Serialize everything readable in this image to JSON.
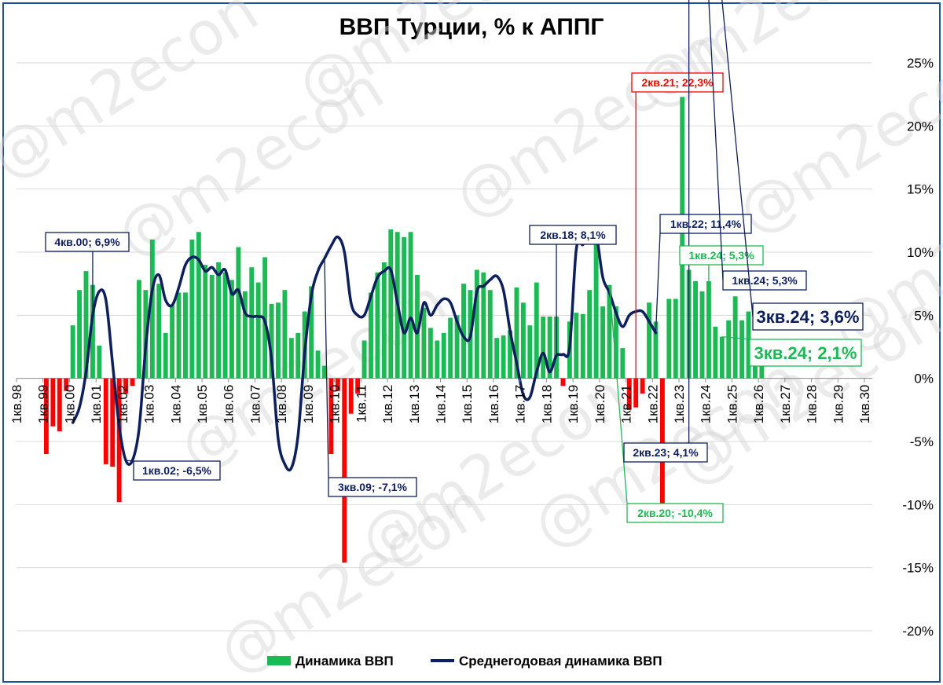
{
  "chart_data": {
    "type": "bar",
    "title": "ВВП Турции, % к АППГ",
    "watermark": "@m2econ",
    "y_axis": {
      "position": "right",
      "ylim": [
        -20,
        25
      ],
      "ticks": [
        25,
        20,
        15,
        10,
        5,
        0,
        -5,
        -10,
        -15,
        -20
      ],
      "tick_labels": [
        "25%",
        "20%",
        "15%",
        "10%",
        "5%",
        "0%",
        "-5%",
        "-10%",
        "-15%",
        "-20%"
      ],
      "grid": true
    },
    "x_axis": {
      "start": "1кв.98",
      "end": "1кв.30",
      "tick_labels": [
        "1кв.98",
        "1кв.99",
        "1кв.00",
        "1кв.01",
        "1кв.02",
        "1кв.03",
        "1кв.04",
        "1кв.05",
        "1кв.06",
        "1кв.07",
        "1кв.08",
        "1кв.09",
        "1кв.10",
        "1кв.11",
        "1кв.12",
        "1кв.13",
        "1кв.14",
        "1кв.15",
        "1кв.16",
        "1кв.17",
        "1кв.18",
        "1кв.19",
        "1кв.20",
        "1кв.21",
        "1кв.22",
        "1кв.23",
        "1кв.24",
        "1кв.25",
        "1кв.26",
        "1кв.27",
        "1кв.28",
        "1кв.29",
        "1кв.30"
      ]
    },
    "colors": {
      "positive_bar": "#1db954",
      "negative_bar": "#ff0000",
      "line": "#0d1f5c",
      "grid": "#d9d9d9"
    },
    "series": [
      {
        "name": "Динамика ВВП",
        "type": "bar",
        "start": "1кв.99",
        "values": [
          -6.0,
          -3.8,
          -4.2,
          -1.0,
          4.2,
          7.0,
          8.5,
          7.4,
          2.6,
          -6.8,
          -7.0,
          -9.8,
          -1.2,
          -0.6,
          7.8,
          7.0,
          11.0,
          7.5,
          3.6,
          5.8,
          6.8,
          6.8,
          11.0,
          11.6,
          9.0,
          8.2,
          9.2,
          8.4,
          7.8,
          10.4,
          6.9,
          8.8,
          7.6,
          9.6,
          5.9,
          6.0,
          7.0,
          3.2,
          3.6,
          5.3,
          7.3,
          2.2,
          1.0,
          -6.0,
          -1.0,
          -14.6,
          -2.8,
          -1.2,
          3.0,
          6.8,
          8.4,
          9.2,
          11.8,
          11.6,
          11.2,
          11.6,
          8.2,
          5.6,
          4.0,
          3.0,
          3.6,
          4.8,
          5.0,
          7.5,
          7.0,
          8.6,
          8.4,
          7.0,
          3.2,
          3.4,
          3.8,
          7.2,
          6.0,
          4.2,
          7.6,
          4.9,
          4.9,
          4.9,
          -0.6,
          4.5,
          5.2,
          5.1,
          7.0,
          11.0,
          5.7,
          7.4,
          5.7,
          2.4,
          -2.5,
          -2.3,
          -1.2,
          6.0,
          4.5,
          -10.4,
          6.3,
          6.3,
          22.3,
          8.6,
          7.7,
          6.9,
          7.7,
          4.1,
          3.3,
          4.6,
          6.5,
          4.6,
          5.3,
          2.3,
          2.1
        ]
      },
      {
        "name": "Среднегодовая динамика ВВП",
        "type": "line",
        "start": "1кв.00",
        "values": [
          -3.5,
          -2.3,
          0.5,
          5.0,
          6.9,
          6.2,
          1.2,
          -3.8,
          -6.5,
          -6.5,
          -4.0,
          2.5,
          7.0,
          8.2,
          6.2,
          5.8,
          7.2,
          9.0,
          9.6,
          9.4,
          8.5,
          8.8,
          8.2,
          8.6,
          6.7,
          7.0,
          5.2,
          4.9,
          4.9,
          4.5,
          1.5,
          -4.8,
          -6.8,
          -7.1,
          -4.5,
          2.0,
          6.5,
          8.5,
          9.5,
          10.5,
          11.2,
          10.0,
          6.0,
          5.0,
          5.0,
          6.5,
          8.0,
          8.5,
          8.6,
          6.0,
          3.6,
          4.8,
          3.6,
          6.0,
          5.0,
          5.8,
          6.3,
          6.0,
          4.5,
          3.3,
          3.3,
          6.9,
          7.3,
          7.8,
          8.1,
          7.0,
          3.8,
          1.2,
          -1.3,
          -1.5,
          0.5,
          2.0,
          0.5,
          1.8,
          1.9,
          2.5,
          10.2,
          10.6,
          11.2,
          11.4,
          8.0,
          6.8,
          5.2,
          4.1,
          5.0,
          5.3,
          5.3,
          4.5,
          3.6
        ]
      }
    ],
    "annotations": [
      {
        "series": "Среднегодовая динамика ВВП",
        "point": "4кв.00",
        "label": "4кв.00; 6,9%"
      },
      {
        "series": "Среднегодовая динамика ВВП",
        "point": "1кв.02",
        "label": "1кв.02; -6,5%"
      },
      {
        "series": "Среднегодовая динамика ВВП",
        "point": "3кв.09",
        "label": "3кв.09; -7,1%"
      },
      {
        "series": "Среднегодовая динамика ВВП",
        "point": "2кв.18",
        "label": "2кв.18; 8,1%"
      },
      {
        "series": "Динамика ВВП",
        "point": "2кв.20",
        "label": "2кв.20; -10,4%"
      },
      {
        "series": "Динамика ВВП",
        "point": "2кв.21",
        "label": "2кв.21; 22,3%"
      },
      {
        "series": "Среднегодовая динамика ВВП",
        "point": "1кв.22",
        "label": "1кв.22; 11,4%"
      },
      {
        "series": "Среднегодовая динамика ВВП",
        "point": "2кв.23",
        "label": "2кв.23; 4,1%"
      },
      {
        "series": "Динамика ВВП",
        "point": "1кв.24",
        "label": "1кв.24; 5,3%"
      },
      {
        "series": "Среднегодовая динамика ВВП",
        "point": "1кв.24",
        "label": "1кв.24; 5,3%"
      },
      {
        "series": "Среднегодовая динамика ВВП",
        "point": "3кв.24",
        "label": "3кв.24; 3,6%"
      },
      {
        "series": "Динамика ВВП",
        "point": "3кв.24",
        "label": "3кв.24; 2,1%"
      }
    ],
    "legend": {
      "placement": "bottom",
      "items": [
        "Динамика ВВП",
        "Среднегодовая динамика ВВП"
      ]
    }
  }
}
